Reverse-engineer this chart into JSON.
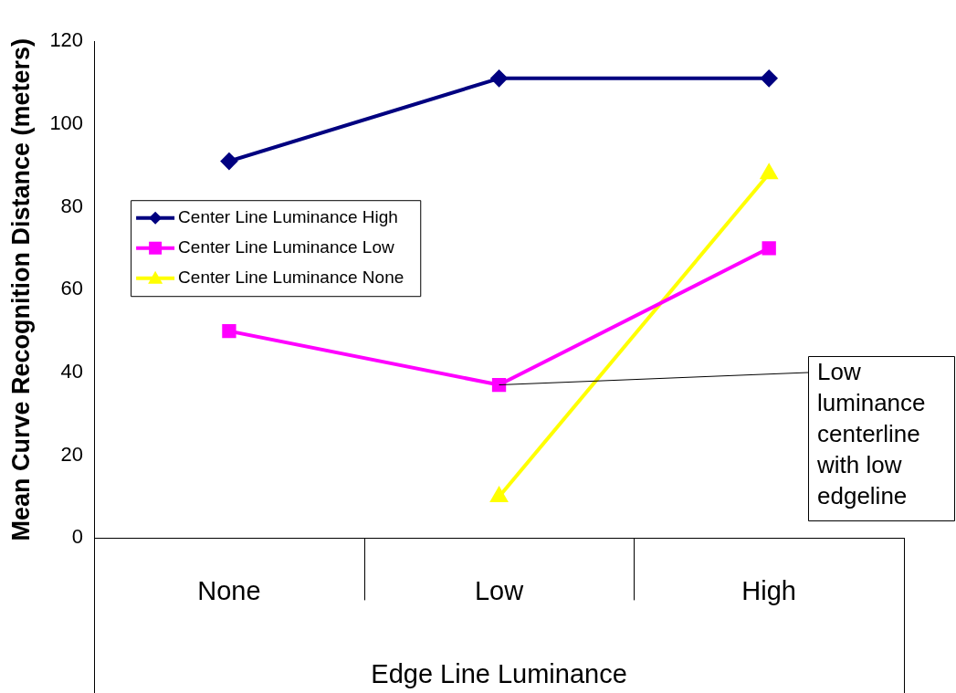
{
  "chart_data": {
    "type": "line",
    "xlabel": "Edge Line Luminance",
    "ylabel": "Mean Curve Recognition Distance (meters)",
    "categories": [
      "None",
      "Low",
      "High"
    ],
    "series": [
      {
        "name": "Center Line Luminance High",
        "color": "#000080",
        "marker": "diamond",
        "values": [
          91,
          111,
          111
        ]
      },
      {
        "name": "Center Line Luminance Low",
        "color": "#ff00ff",
        "marker": "square",
        "values": [
          50,
          37,
          70
        ]
      },
      {
        "name": "Center Line Luminance None",
        "color": "#ffff00",
        "marker": "triangle",
        "values": [
          null,
          10,
          88
        ]
      }
    ],
    "ylim": [
      0,
      120
    ],
    "yticks": [
      0,
      20,
      40,
      60,
      80,
      100,
      120
    ],
    "grid": false,
    "legend": "left",
    "annotations": [
      {
        "text": "Low luminance centerline with low edgeline",
        "x": "Low",
        "y": 37
      }
    ]
  }
}
